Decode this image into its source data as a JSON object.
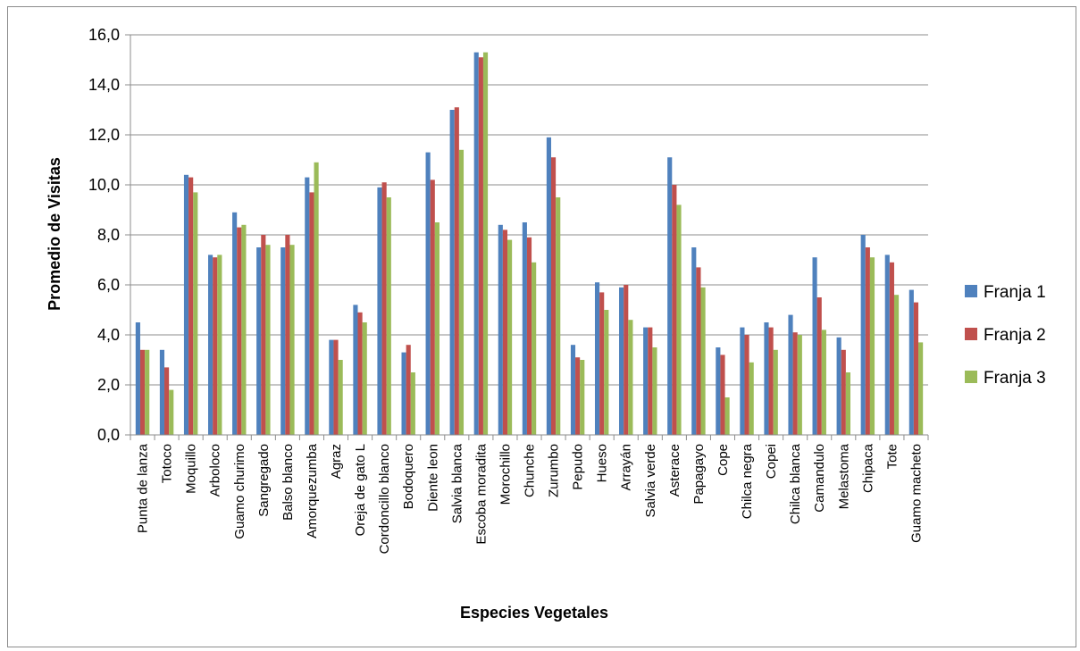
{
  "chart_data": {
    "type": "bar",
    "title": "",
    "xlabel": "Especies Vegetales",
    "ylabel": "Promedio de Visitas",
    "ylim": [
      0,
      16
    ],
    "ytick_step": 2,
    "ytick_labels": [
      "0,0",
      "2,0",
      "4,0",
      "6,0",
      "8,0",
      "10,0",
      "12,0",
      "14,0",
      "16,0"
    ],
    "grid": true,
    "legend_position": "right",
    "categories": [
      "Punta de lanza",
      "Totoco",
      "Moquillo",
      "Arboloco",
      "Guamo churimo",
      "Sangregado",
      "Balso blanco",
      "Amorquezumba",
      "Agraz",
      "Oreja de gato L",
      "Cordoncillo blanco",
      "Bodoquero",
      "Diente leon",
      "Salvia blanca",
      "Escoba moradita",
      "Morochillo",
      "Chunche",
      "Zurumbo",
      "Pepudo",
      "Hueso",
      "Arrayán",
      "Salvia verde",
      "Asterace",
      "Papagayo",
      "Cope",
      "Chilca negra",
      "Copei",
      "Chilca blanca",
      "Camandulo",
      "Melastoma",
      "Chipaca",
      "Tote",
      "Guamo macheto"
    ],
    "series": [
      {
        "name": "Franja 1",
        "color": "#4F81BD",
        "values": [
          4.5,
          3.4,
          10.4,
          7.2,
          8.9,
          7.5,
          7.5,
          10.3,
          3.8,
          5.2,
          9.9,
          3.3,
          11.3,
          13.0,
          15.3,
          8.4,
          8.5,
          11.9,
          3.6,
          6.1,
          5.9,
          4.3,
          11.1,
          7.5,
          3.5,
          4.3,
          4.5,
          4.8,
          7.1,
          3.9,
          8.0,
          7.2,
          5.8
        ]
      },
      {
        "name": "Franja 2",
        "color": "#C0504D",
        "values": [
          3.4,
          2.7,
          10.3,
          7.1,
          8.3,
          8.0,
          8.0,
          9.7,
          3.8,
          4.9,
          10.1,
          3.6,
          10.2,
          13.1,
          15.1,
          8.2,
          7.9,
          11.1,
          3.1,
          5.7,
          6.0,
          4.3,
          10.0,
          6.7,
          3.2,
          4.0,
          4.3,
          4.1,
          5.5,
          3.4,
          7.5,
          6.9,
          5.3
        ]
      },
      {
        "name": "Franja 3",
        "color": "#9BBB59",
        "values": [
          3.4,
          1.8,
          9.7,
          7.2,
          8.4,
          7.6,
          7.6,
          10.9,
          3.0,
          4.5,
          9.5,
          2.5,
          8.5,
          11.4,
          15.3,
          7.8,
          6.9,
          9.5,
          3.0,
          5.0,
          4.6,
          3.5,
          9.2,
          5.9,
          1.5,
          2.9,
          3.4,
          4.0,
          4.2,
          2.5,
          7.1,
          5.6,
          3.7
        ]
      }
    ]
  }
}
